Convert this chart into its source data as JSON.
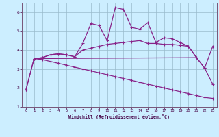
{
  "xlabel": "Windchill (Refroidissement éolien,°C)",
  "bg_color": "#cceeff",
  "line_color": "#882288",
  "grid_color": "#99bbcc",
  "xlim": [
    -0.5,
    23.5
  ],
  "ylim": [
    1.0,
    6.5
  ],
  "yticks": [
    1,
    2,
    3,
    4,
    5,
    6
  ],
  "xticks": [
    0,
    1,
    2,
    3,
    4,
    5,
    6,
    7,
    8,
    9,
    10,
    11,
    12,
    13,
    14,
    15,
    16,
    17,
    18,
    19,
    20,
    21,
    22,
    23
  ],
  "line1_x": [
    0,
    1,
    2,
    3,
    4,
    5,
    6,
    7,
    8,
    9,
    10,
    11,
    12,
    13,
    14,
    15,
    16,
    17,
    18,
    19,
    20,
    21,
    22,
    23
  ],
  "line1_y": [
    1.9,
    3.55,
    3.6,
    3.75,
    3.8,
    3.75,
    3.65,
    4.35,
    5.4,
    5.3,
    4.5,
    6.25,
    6.15,
    5.2,
    5.1,
    5.45,
    4.4,
    4.65,
    4.6,
    4.4,
    4.2,
    3.6,
    3.05,
    2.2
  ],
  "line2_x": [
    1,
    2,
    3,
    4,
    5,
    6,
    7,
    8,
    9,
    10,
    11,
    12,
    13,
    14,
    15,
    16,
    17,
    18,
    19,
    20,
    21,
    22,
    23
  ],
  "line2_y": [
    3.55,
    3.6,
    3.75,
    3.8,
    3.75,
    3.65,
    4.0,
    4.1,
    4.2,
    4.3,
    4.35,
    4.4,
    4.45,
    4.5,
    4.35,
    4.35,
    4.3,
    4.3,
    4.25,
    4.2,
    3.6,
    3.05,
    4.2
  ],
  "line3_x": [
    1,
    21
  ],
  "line3_y": [
    3.55,
    3.6
  ],
  "line4_x": [
    0,
    1,
    2,
    3,
    4,
    5,
    6,
    7,
    8,
    9,
    10,
    11,
    12,
    13,
    14,
    15,
    16,
    17,
    18,
    19,
    20,
    21,
    22,
    23
  ],
  "line4_y": [
    1.9,
    3.55,
    3.5,
    3.4,
    3.3,
    3.2,
    3.1,
    3.0,
    2.9,
    2.8,
    2.7,
    2.6,
    2.5,
    2.4,
    2.3,
    2.2,
    2.1,
    2.0,
    1.9,
    1.8,
    1.7,
    1.6,
    1.5,
    1.45
  ]
}
